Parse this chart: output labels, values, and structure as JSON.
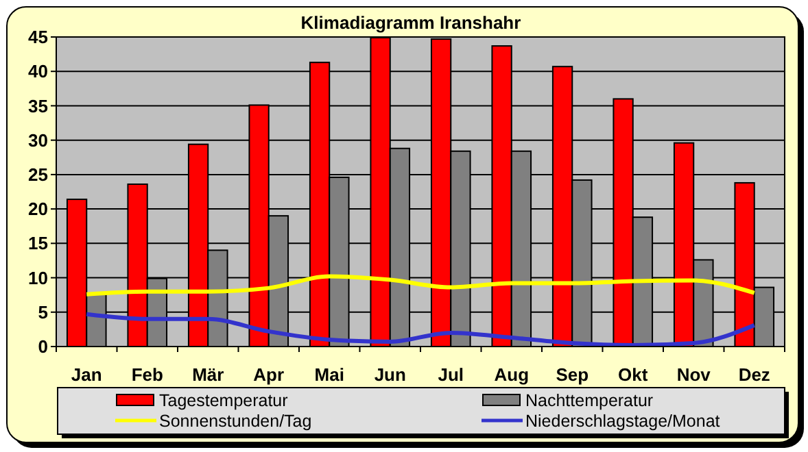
{
  "chart_data": {
    "type": "bar",
    "title": "Klimadiagramm Iranshahr",
    "categories": [
      "Jan",
      "Feb",
      "Mär",
      "Apr",
      "Mai",
      "Jun",
      "Jul",
      "Aug",
      "Sep",
      "Okt",
      "Nov",
      "Dez"
    ],
    "series": [
      {
        "name": "Tagestemperatur",
        "color": "#ff0000",
        "values": [
          21.4,
          23.6,
          29.4,
          35.1,
          41.3,
          44.9,
          44.7,
          43.7,
          40.7,
          36.0,
          29.6,
          23.8
        ]
      },
      {
        "name": "Nachttemperatur",
        "color": "#808080",
        "values": [
          7.7,
          9.9,
          14.0,
          19.0,
          24.6,
          28.8,
          28.4,
          28.4,
          24.2,
          18.8,
          12.6,
          8.6
        ]
      },
      {
        "name": "Sonnenstunden/Tag",
        "type": "line",
        "color": "#ffff00",
        "values": [
          7.6,
          8.0,
          8.0,
          8.5,
          10.2,
          9.7,
          8.6,
          9.2,
          9.2,
          9.5,
          9.6,
          7.8
        ]
      },
      {
        "name": "Niederschlagstage/Monat",
        "type": "line",
        "color": "#3333cc",
        "values": [
          4.7,
          4.0,
          4.0,
          2.2,
          1.0,
          0.7,
          2.0,
          1.3,
          0.5,
          0.2,
          0.5,
          3.1
        ]
      }
    ],
    "ylim": [
      0,
      45
    ],
    "yticks": [
      0,
      5,
      10,
      15,
      20,
      25,
      30,
      35,
      40,
      45
    ],
    "grid": "y",
    "legend": "bottom",
    "marker": "none",
    "line_style": "solid"
  }
}
